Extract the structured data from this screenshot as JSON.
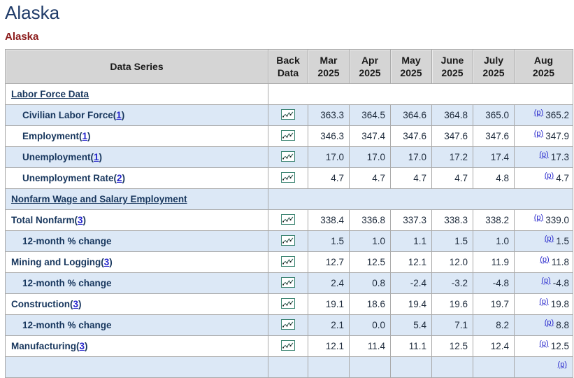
{
  "page": {
    "title": "Alaska",
    "subtitle": "Alaska"
  },
  "colors": {
    "title_navy": "#1e3a68",
    "subtitle_red": "#8b1b1b",
    "header_gray": "#d5d5d5",
    "alt_row_blue": "#dce8f6",
    "label_navy": "#17365d",
    "link_blue": "#2626cc",
    "border_gray": "#a9a9a9",
    "icon_border_teal": "#35806d",
    "icon_line_teal": "#27584d"
  },
  "table": {
    "header": {
      "data_series": "Data Series",
      "back_data": {
        "line1": "Back",
        "line2": "Data"
      },
      "months": [
        {
          "line1": "Mar",
          "line2": "2025"
        },
        {
          "line1": "Apr",
          "line2": "2025"
        },
        {
          "line1": "May",
          "line2": "2025"
        },
        {
          "line1": "June",
          "line2": "2025"
        },
        {
          "line1": "July",
          "line2": "2025"
        },
        {
          "line1": "Aug",
          "line2": "2025"
        }
      ]
    },
    "back_data_icon": "sparkline-chart-icon",
    "prelim_marker": "(p)",
    "rows": [
      {
        "type": "section",
        "label": "Labor Force Data"
      },
      {
        "type": "data",
        "label": "Civilian Labor Force",
        "footnote": "1",
        "indent": 1,
        "values": [
          "363.3",
          "364.5",
          "364.6",
          "364.8",
          "365.0"
        ],
        "aug": "365.2"
      },
      {
        "type": "data",
        "label": "Employment",
        "footnote": "1",
        "indent": 1,
        "values": [
          "346.3",
          "347.4",
          "347.6",
          "347.6",
          "347.6"
        ],
        "aug": "347.9"
      },
      {
        "type": "data",
        "label": "Unemployment",
        "footnote": "1",
        "indent": 1,
        "values": [
          "17.0",
          "17.0",
          "17.0",
          "17.2",
          "17.4"
        ],
        "aug": "17.3"
      },
      {
        "type": "data",
        "label": "Unemployment Rate",
        "footnote": "2",
        "indent": 1,
        "values": [
          "4.7",
          "4.7",
          "4.7",
          "4.7",
          "4.8"
        ],
        "aug": "4.7"
      },
      {
        "type": "section",
        "label": "Nonfarm Wage and Salary Employment"
      },
      {
        "type": "data",
        "label": "Total Nonfarm",
        "footnote": "3",
        "indent": 0,
        "values": [
          "338.4",
          "336.8",
          "337.3",
          "338.3",
          "338.2"
        ],
        "aug": "339.0"
      },
      {
        "type": "data",
        "label": "12-month % change",
        "footnote": "",
        "indent": 1,
        "values": [
          "1.5",
          "1.0",
          "1.1",
          "1.5",
          "1.0"
        ],
        "aug": "1.5"
      },
      {
        "type": "data",
        "label": "Mining and Logging",
        "footnote": "3",
        "indent": 0,
        "values": [
          "12.7",
          "12.5",
          "12.1",
          "12.0",
          "11.9"
        ],
        "aug": "11.8"
      },
      {
        "type": "data",
        "label": "12-month % change",
        "footnote": "",
        "indent": 1,
        "values": [
          "2.4",
          "0.8",
          "-2.4",
          "-3.2",
          "-4.8"
        ],
        "aug": "-4.8"
      },
      {
        "type": "data",
        "label": "Construction",
        "footnote": "3",
        "indent": 0,
        "values": [
          "19.1",
          "18.6",
          "19.4",
          "19.6",
          "19.7"
        ],
        "aug": "19.8"
      },
      {
        "type": "data",
        "label": "12-month % change",
        "footnote": "",
        "indent": 1,
        "values": [
          "2.1",
          "0.0",
          "5.4",
          "7.1",
          "8.2"
        ],
        "aug": "8.8"
      },
      {
        "type": "data",
        "label": "Manufacturing",
        "footnote": "3",
        "indent": 0,
        "values": [
          "12.1",
          "11.4",
          "11.1",
          "12.5",
          "12.4"
        ],
        "aug": "12.5"
      },
      {
        "type": "partial"
      }
    ]
  }
}
